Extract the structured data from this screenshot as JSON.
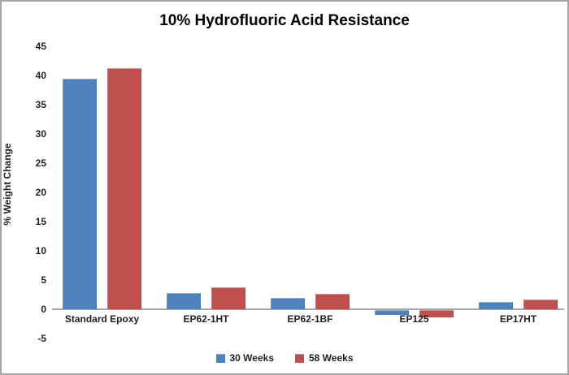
{
  "chart": {
    "title": "10% Hydrofluoric Acid Resistance",
    "ylabel": "% Weight Change"
  },
  "chart_data": {
    "type": "bar",
    "title": "10% Hydrofluoric Acid Resistance",
    "xlabel": "",
    "ylabel": "% Weight Change",
    "categories": [
      "Standard Epoxy",
      "EP62-1HT",
      "EP62-1BF",
      "EP125",
      "EP17HT"
    ],
    "series": [
      {
        "name": "30 Weeks",
        "color": "#4f81bd",
        "values": [
          39.5,
          2.8,
          2.0,
          -0.8,
          1.3
        ]
      },
      {
        "name": "58 Weeks",
        "color": "#c0504d",
        "values": [
          41.3,
          3.8,
          2.6,
          -1.2,
          1.7
        ]
      }
    ],
    "ylim": [
      -5,
      45
    ],
    "ytick_step": 5,
    "yticks": [
      45,
      40,
      35,
      30,
      25,
      20,
      15,
      10,
      5,
      0,
      -5
    ],
    "grid": false,
    "legend_position": "bottom",
    "background": "#ffffff",
    "axis_line_color": "#a6a6a6",
    "text_color": "#1f1f1f"
  }
}
